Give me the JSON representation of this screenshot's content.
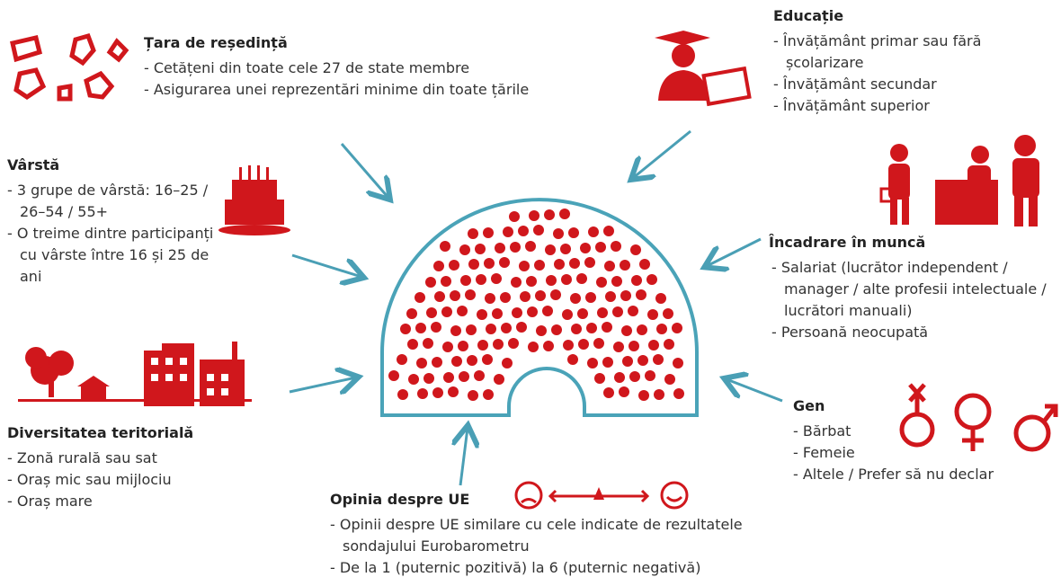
{
  "sections": [
    {
      "title": "Țara de reședință",
      "items": [
        "- Cetățeni din toate cele 27 de state membre",
        "- Asigurarea unei reprezentări minime din toate țările"
      ]
    },
    {
      "title": "Vârstă",
      "items": [
        "- 3 grupe de vârstă: 16–25 / 26–54 / 55+",
        "- O treime dintre participanți cu vârste între 16 și 25 de ani"
      ]
    },
    {
      "title": "Diversitatea teritorială",
      "items": [
        "- Zonă rurală sau sat",
        "- Oraș mic sau mijlociu",
        "- Oraș mare"
      ]
    },
    {
      "title": "Educație",
      "items": [
        "- Învățământ primar sau fără școlarizare",
        "- Învățământ secundar",
        "- Învățământ superior"
      ]
    },
    {
      "title": "Încadrare în muncă",
      "items": [
        "- Salariat (lucrător independent / manager / alte profesii intelectuale / lucrători manuali)",
        "- Persoană neocupată"
      ]
    },
    {
      "title": "Gen",
      "items": [
        "- Bărbat",
        "- Femeie",
        "- Altele / Prefer să nu declar"
      ]
    },
    {
      "title": "Opinia despre UE",
      "items": [
        "- Opinii despre UE similare cu cele indicate de rezultatele sondajului Eurobarometru",
        "- De la 1 (puternic pozitivă) la 6 (puternic negativă)"
      ]
    }
  ]
}
